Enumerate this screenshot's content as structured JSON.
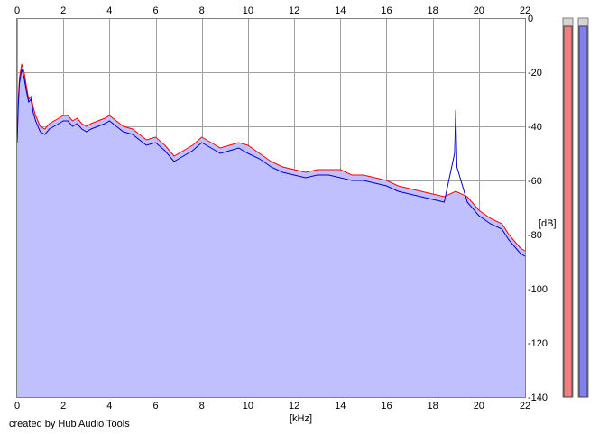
{
  "credit": "created by Hub Audio Tools",
  "chart_data": {
    "type": "area",
    "xlabel": "[kHz]",
    "ylabel": "[dB]",
    "xlim": [
      0,
      22
    ],
    "ylim": [
      -140,
      0
    ],
    "x_ticks": [
      0,
      2,
      4,
      6,
      8,
      10,
      12,
      14,
      16,
      18,
      20,
      22
    ],
    "y_ticks": [
      0,
      -20,
      -40,
      -60,
      -80,
      -100,
      -120,
      -140
    ],
    "grid": true,
    "colors": {
      "fill": "#c0c0ff",
      "channel1": "#ff0000",
      "channel2": "#0000cc",
      "grid": "#a0a0a0",
      "meter1": "#f08080",
      "meter2": "#8080f0"
    },
    "series": [
      {
        "x": [
          0.0,
          0.05,
          0.1,
          0.2,
          0.3,
          0.4,
          0.5,
          0.6,
          0.7,
          0.8,
          1.0,
          1.2,
          1.4,
          1.6,
          1.8,
          2.0,
          2.2,
          2.4,
          2.6,
          2.8,
          3.0,
          3.2,
          3.5,
          3.8,
          4.0,
          4.3,
          4.6,
          5.0,
          5.3,
          5.6,
          6.0,
          6.4,
          6.8,
          7.2,
          7.6,
          8.0,
          8.4,
          8.8,
          9.2,
          9.6,
          10.0,
          10.5,
          11.0,
          11.5,
          12.0,
          12.5,
          13.0,
          13.5,
          14.0,
          14.5,
          15.0,
          15.5,
          16.0,
          16.5,
          17.0,
          17.5,
          18.0,
          18.5,
          19.0,
          19.5,
          20.0,
          20.5,
          21.0,
          21.3,
          21.6,
          21.8,
          22.0
        ],
        "y": [
          -45,
          -30,
          -22,
          -17,
          -20,
          -25,
          -30,
          -29,
          -33,
          -36,
          -40,
          -41,
          -39,
          -38,
          -37,
          -36,
          -36,
          -38,
          -37,
          -39,
          -40,
          -39,
          -38,
          -37,
          -36,
          -38,
          -40,
          -41,
          -43,
          -45,
          -44,
          -47,
          -51,
          -49,
          -47,
          -44,
          -46,
          -48,
          -47,
          -46,
          -47,
          -50,
          -53,
          -55,
          -56,
          -57,
          -56,
          -56,
          -56,
          -58,
          -58,
          -59,
          -60,
          -62,
          -63,
          -64,
          -65,
          -66,
          -64,
          -66,
          -71,
          -74,
          -76,
          -80,
          -83,
          -85,
          -86
        ]
      },
      {
        "x": [
          0.0,
          0.05,
          0.1,
          0.2,
          0.3,
          0.4,
          0.5,
          0.6,
          0.7,
          0.8,
          1.0,
          1.2,
          1.4,
          1.6,
          1.8,
          2.0,
          2.2,
          2.4,
          2.6,
          2.8,
          3.0,
          3.2,
          3.5,
          3.8,
          4.0,
          4.3,
          4.6,
          5.0,
          5.3,
          5.6,
          6.0,
          6.4,
          6.8,
          7.2,
          7.6,
          8.0,
          8.4,
          8.8,
          9.2,
          9.6,
          10.0,
          10.5,
          11.0,
          11.5,
          12.0,
          12.5,
          13.0,
          13.5,
          14.0,
          14.5,
          15.0,
          15.5,
          16.0,
          16.5,
          17.0,
          17.5,
          18.0,
          18.5,
          18.95,
          19.0,
          19.05,
          19.5,
          20.0,
          20.5,
          21.0,
          21.3,
          21.6,
          21.8,
          22.0
        ],
        "y": [
          -46,
          -32,
          -24,
          -19,
          -22,
          -27,
          -31,
          -30,
          -35,
          -38,
          -42,
          -43,
          -41,
          -40,
          -39,
          -38,
          -38,
          -40,
          -39,
          -41,
          -42,
          -41,
          -40,
          -39,
          -38,
          -40,
          -42,
          -43,
          -45,
          -47,
          -46,
          -49,
          -53,
          -51,
          -49,
          -46,
          -48,
          -50,
          -49,
          -48,
          -50,
          -52,
          -55,
          -57,
          -58,
          -59,
          -58,
          -58,
          -59,
          -60,
          -60,
          -61,
          -62,
          -64,
          -65,
          -66,
          -67,
          -68,
          -50,
          -34,
          -55,
          -68,
          -73,
          -76,
          -78,
          -82,
          -85,
          -87,
          -88
        ]
      }
    ],
    "peak_meters": [
      -3,
      -3
    ]
  }
}
